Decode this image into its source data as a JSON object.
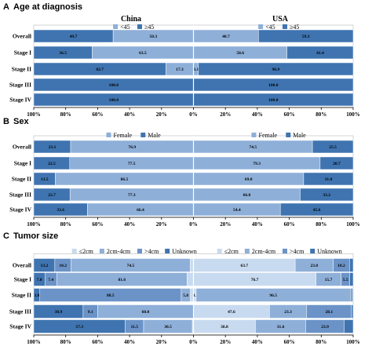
{
  "colors": {
    "light": "#8EAFD8",
    "dark": "#3F74B0",
    "xlight": "#C8DAEF",
    "mid": "#6B93C7",
    "axis": "#000000",
    "sep": "#ffffff"
  },
  "countries": [
    "China",
    "USA"
  ],
  "chart_data": [
    {
      "type": "bar",
      "orientation": "horizontal-stacked-percent",
      "panel_letter": "A",
      "title": "Age at diagnosis",
      "categories": [
        "Overall",
        "Stage I",
        "Stage II",
        "Stage III",
        "Stage IV"
      ],
      "x_ticks": [
        "100%",
        "80%",
        "60%",
        "40%",
        "20%",
        "0%",
        "20%",
        "40%",
        "60%",
        "80%",
        "100%"
      ],
      "legend": [
        {
          "name": "<45",
          "color": "light"
        },
        {
          "name": "≥45",
          "color": "dark"
        }
      ],
      "china": {
        "segments": [
          "dark",
          "light"
        ],
        "rows": [
          [
            49.7,
            50.3
          ],
          [
            36.5,
            63.5
          ],
          [
            82.7,
            17.3
          ],
          [
            100.0,
            0
          ],
          [
            100.0,
            0
          ]
        ],
        "labels": [
          [
            "49.7",
            "50.3"
          ],
          [
            "36.5",
            "63.5"
          ],
          [
            "82.7",
            "17.3"
          ],
          [
            "100.0",
            ""
          ],
          [
            "100.0",
            ""
          ]
        ]
      },
      "usa": {
        "segments": [
          "light",
          "dark"
        ],
        "rows": [
          [
            40.7,
            59.3
          ],
          [
            58.6,
            41.4
          ],
          [
            3.1,
            96.9
          ],
          [
            0,
            100.0
          ],
          [
            0,
            100.0
          ]
        ],
        "labels": [
          [
            "40.7",
            "59.3"
          ],
          [
            "58.6",
            "41.4"
          ],
          [
            "3.1",
            "96.9"
          ],
          [
            "0.0",
            "100.0"
          ],
          [
            "0.0",
            "100.0"
          ]
        ]
      }
    },
    {
      "type": "bar",
      "orientation": "horizontal-stacked-percent",
      "panel_letter": "B",
      "title": "Sex",
      "categories": [
        "Overall",
        "Stage I",
        "Stage II",
        "Stage III",
        "Stage IV"
      ],
      "x_ticks": [
        "100%",
        "80%",
        "60%",
        "40%",
        "20%",
        "0%",
        "20%",
        "40%",
        "60%",
        "80%",
        "100%"
      ],
      "legend": [
        {
          "name": "Female",
          "color": "light"
        },
        {
          "name": "Male",
          "color": "dark"
        }
      ],
      "china": {
        "segments": [
          "dark",
          "light"
        ],
        "rows": [
          [
            23.1,
            76.9
          ],
          [
            22.5,
            77.5
          ],
          [
            13.5,
            86.5
          ],
          [
            22.7,
            77.3
          ],
          [
            33.6,
            66.4
          ]
        ],
        "labels": [
          [
            "23.1",
            "76.9"
          ],
          [
            "22.5",
            "77.5"
          ],
          [
            "13.5",
            "86.5"
          ],
          [
            "22.7",
            "77.3"
          ],
          [
            "33.6",
            "66.4"
          ]
        ]
      },
      "usa": {
        "segments": [
          "light",
          "dark"
        ],
        "rows": [
          [
            74.5,
            25.5
          ],
          [
            79.3,
            20.7
          ],
          [
            69.0,
            31.0
          ],
          [
            66.8,
            33.2
          ],
          [
            54.4,
            45.6
          ]
        ],
        "labels": [
          [
            "74.5",
            "25.5"
          ],
          [
            "79.3",
            "20.7"
          ],
          [
            "69.0",
            "31.0"
          ],
          [
            "66.8",
            "33.2"
          ],
          [
            "54.4",
            "45.6"
          ]
        ]
      }
    },
    {
      "type": "bar",
      "orientation": "horizontal-stacked-percent",
      "panel_letter": "C",
      "title": "Tumor size",
      "categories": [
        "Overall",
        "Stage I",
        "Stage II",
        "Stage III",
        "Stage IV"
      ],
      "x_ticks": [
        "100%",
        "80%",
        "60%",
        "40%",
        "20%",
        "0%",
        "20%",
        "40%",
        "60%",
        "80%",
        "100%"
      ],
      "legend": [
        {
          "name": "≤2cm",
          "color": "xlight"
        },
        {
          "name": "2cm-4cm",
          "color": "light"
        },
        {
          "name": ">4cm",
          "color": "mid"
        },
        {
          "name": "Unknown",
          "color": "dark"
        }
      ],
      "china": {
        "segments": [
          "dark",
          "mid",
          "light",
          "xlight"
        ],
        "rows": [
          [
            13.2,
            10.2,
            74.5,
            2.1
          ],
          [
            7.0,
            7.4,
            81.6,
            4.0
          ],
          [
            3.8,
            88.5,
            5.8,
            1.9
          ],
          [
            30.9,
            9.1,
            60.0,
            0
          ],
          [
            57.3,
            11.5,
            30.5,
            0.7
          ]
        ],
        "labels": [
          [
            "13.2",
            "10.2",
            "74.5",
            ""
          ],
          [
            "7.0",
            "7.4",
            "81.6",
            ""
          ],
          [
            "3.8",
            "88.5",
            "5.8",
            ""
          ],
          [
            "30.9",
            "9.1",
            "60.0",
            ""
          ],
          [
            "57.3",
            "11.5",
            "30.5",
            ""
          ]
        ]
      },
      "usa": {
        "segments": [
          "xlight",
          "light",
          "mid",
          "dark"
        ],
        "rows": [
          [
            63.7,
            23.8,
            10.2,
            2.3
          ],
          [
            76.7,
            15.7,
            5.5,
            2.1
          ],
          [
            1.7,
            96.5,
            1.3,
            0.5
          ],
          [
            47.6,
            23.3,
            28.1,
            1.0
          ],
          [
            38.8,
            31.6,
            23.9,
            5.7
          ]
        ],
        "labels": [
          [
            "63.7",
            "23.8",
            "10.2",
            ""
          ],
          [
            "76.7",
            "15.7",
            "5.5",
            ""
          ],
          [
            "1.7",
            "96.5",
            "",
            ""
          ],
          [
            "47.6",
            "23.3",
            "28.1",
            ""
          ],
          [
            "38.8",
            "31.6",
            "23.9",
            ""
          ]
        ]
      }
    }
  ]
}
